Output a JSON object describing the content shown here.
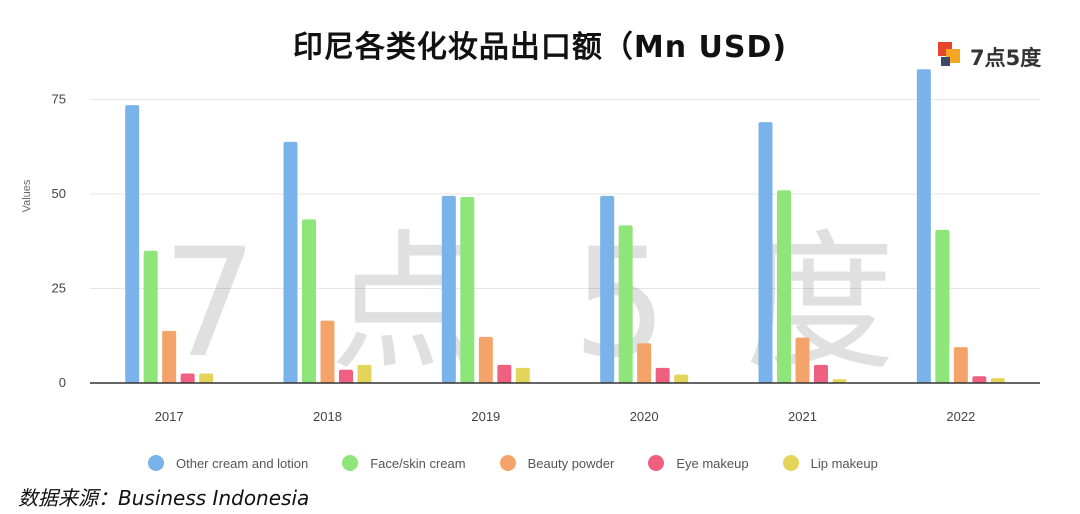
{
  "title": "印尼各类化妆品出口额（Mn USD)",
  "logo": {
    "text": "7点5度",
    "colors": [
      "#e8442b",
      "#f5a623",
      "#3b4a6b"
    ]
  },
  "watermark": [
    "7",
    "点",
    "5",
    "度"
  ],
  "source": "数据来源：Business Indonesia",
  "chart_data": {
    "type": "bar",
    "categories": [
      "2017",
      "2018",
      "2019",
      "2020",
      "2021",
      "2022"
    ],
    "ylabel": "Values",
    "xlabel": "",
    "ylim": [
      0,
      83
    ],
    "yticks": [
      0,
      25,
      50,
      75
    ],
    "grid": true,
    "legend_position": "bottom",
    "series": [
      {
        "name": "Other cream and lotion",
        "color": "#7ab3ea",
        "values": [
          73.5,
          63.8,
          49.5,
          49.5,
          69,
          83
        ]
      },
      {
        "name": "Face/skin cream",
        "color": "#8ee67a",
        "values": [
          35,
          43.3,
          49.2,
          41.7,
          51,
          40.5
        ]
      },
      {
        "name": "Beauty powder",
        "color": "#f4a46a",
        "values": [
          13.8,
          16.5,
          12.2,
          10.5,
          12,
          9.5
        ]
      },
      {
        "name": "Eye makeup",
        "color": "#ee5f80",
        "values": [
          2.5,
          3.5,
          4.8,
          4,
          4.8,
          1.8
        ]
      },
      {
        "name": "Lip makeup",
        "color": "#e3d45a",
        "values": [
          2.5,
          4.8,
          4,
          2.2,
          1,
          1.3
        ]
      }
    ]
  }
}
